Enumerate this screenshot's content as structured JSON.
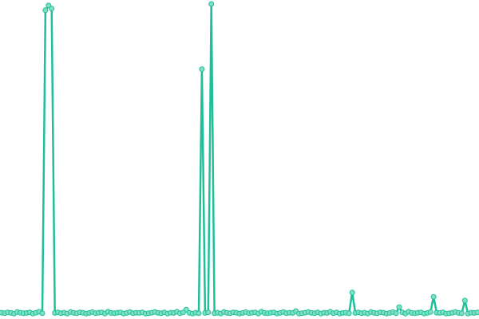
{
  "chart_data": {
    "type": "line",
    "title": "",
    "xlabel": "",
    "ylabel": "",
    "ylim": [
      0,
      100
    ],
    "grid": false,
    "line_color": "#1fbf99",
    "marker_fill": "#7fe0c6",
    "series": [
      {
        "values": [
          0.5,
          0.3,
          0.6,
          0.4,
          0.2,
          0.7,
          0.5,
          0.3,
          0.4,
          0.6,
          0.2,
          0.5,
          0.8,
          0.3,
          98,
          99.5,
          98.5,
          0.4,
          0.6,
          0.3,
          0.5,
          0.2,
          0.7,
          0.4,
          0.3,
          0.6,
          0.5,
          0.2,
          0.4,
          0.7,
          0.3,
          0.5,
          0.6,
          0.2,
          0.8,
          0.4,
          0.3,
          0.5,
          0.6,
          0.2,
          0.4,
          0.7,
          0.3,
          0.5,
          0.4,
          0.6,
          0.2,
          0.3,
          0.5,
          0.7,
          0.4,
          0.3,
          0.6,
          0.2,
          0.5,
          0.4,
          0.8,
          0.3,
          0.6,
          1.5,
          0.4,
          0.2,
          0.5,
          0.3,
          79,
          0.4,
          0.6,
          100,
          0.3,
          0.5,
          0.2,
          0.7,
          0.4,
          0.3,
          0.6,
          0.5,
          0.2,
          0.4,
          0.7,
          0.3,
          0.5,
          0.6,
          0.2,
          0.8,
          0.4,
          0.3,
          0.5,
          0.6,
          0.2,
          0.4,
          0.7,
          0.3,
          0.5,
          0.4,
          1.0,
          0.2,
          0.3,
          0.5,
          0.7,
          0.4,
          0.3,
          0.6,
          0.2,
          0.5,
          0.4,
          0.8,
          0.3,
          0.6,
          0.2,
          0.4,
          0.5,
          0.3,
          7,
          0.4,
          0.6,
          0.3,
          0.5,
          0.2,
          0.7,
          0.4,
          0.3,
          0.6,
          0.5,
          0.2,
          0.4,
          0.7,
          0.3,
          2.3,
          0.6,
          0.2,
          0.8,
          0.4,
          0.3,
          0.5,
          0.6,
          0.2,
          0.4,
          0.7,
          5.6,
          0.5,
          0.4,
          0.6,
          0.2,
          0.3,
          0.5,
          0.7,
          0.4,
          0.3,
          4.4,
          0.2,
          0.5,
          0.4,
          0.6
        ]
      }
    ]
  }
}
